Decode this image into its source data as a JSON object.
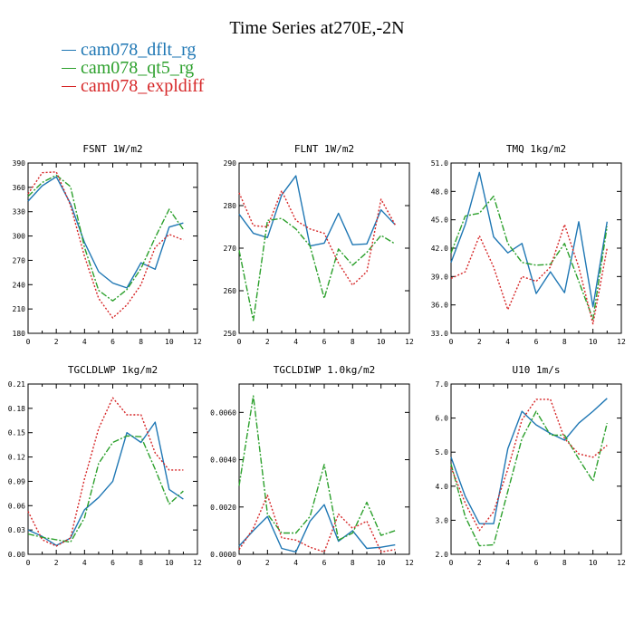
{
  "title": "Time Series at270E,-2N",
  "legend": [
    {
      "name": "cam078_dflt_rg",
      "color": "#1f77b4"
    },
    {
      "name": "cam078_qt5_rg",
      "color": "#2ca02c"
    },
    {
      "name": "cam078_expldiff",
      "color": "#d62728"
    }
  ],
  "chart_data": [
    {
      "type": "line",
      "title": "FSNT  1W/m2",
      "x": [
        0,
        1,
        2,
        3,
        4,
        5,
        6,
        7,
        8,
        9,
        10,
        11
      ],
      "xlim": [
        0,
        12
      ],
      "xticks": [
        0,
        2,
        4,
        6,
        8,
        10,
        12
      ],
      "ylim": [
        180,
        390
      ],
      "yticks": [
        "180",
        "210",
        "240",
        "270",
        "300",
        "330",
        "360",
        "390"
      ],
      "series": [
        {
          "name": "cam078_dflt_rg",
          "values": [
            343,
            362,
            373,
            340,
            292,
            256,
            242,
            236,
            267,
            259,
            311,
            316
          ]
        },
        {
          "name": "cam078_qt5_rg",
          "values": [
            349,
            366,
            375,
            361,
            286,
            233,
            220,
            234,
            260,
            298,
            333,
            308
          ]
        },
        {
          "name": "cam078_expldiff",
          "values": [
            352,
            378,
            379,
            338,
            275,
            223,
            199,
            215,
            240,
            286,
            302,
            295
          ]
        }
      ]
    },
    {
      "type": "line",
      "title": "FLNT  1W/m2",
      "x": [
        0,
        1,
        2,
        3,
        4,
        5,
        6,
        7,
        8,
        9,
        10,
        11
      ],
      "xlim": [
        0,
        12
      ],
      "xticks": [
        0,
        2,
        4,
        6,
        8,
        10,
        12
      ],
      "ylim": [
        250,
        290
      ],
      "yticks": [
        "250",
        "260",
        "270",
        "280",
        "290"
      ],
      "series": [
        {
          "name": "cam078_dflt_rg",
          "values": [
            278,
            273.5,
            272.5,
            282.5,
            287,
            270.5,
            271.2,
            278.2,
            270.8,
            271,
            279,
            275.5
          ]
        },
        {
          "name": "cam078_qt5_rg",
          "values": [
            269.5,
            253,
            276.5,
            277,
            274.5,
            270.5,
            258.2,
            269.8,
            266,
            269,
            273,
            271
          ]
        },
        {
          "name": "cam078_expldiff",
          "values": [
            283,
            275.3,
            275,
            283.5,
            276.5,
            274.5,
            273.5,
            266.5,
            261.3,
            264.5,
            281.5,
            275.5
          ]
        }
      ]
    },
    {
      "type": "line",
      "title": "TMQ  1kg/m2",
      "x": [
        0,
        1,
        2,
        3,
        4,
        5,
        6,
        7,
        8,
        9,
        10,
        11
      ],
      "xlim": [
        0,
        12
      ],
      "xticks": [
        0,
        2,
        4,
        6,
        8,
        10,
        12
      ],
      "ylim": [
        33.0,
        51.0
      ],
      "yticks": [
        "33.0",
        "36.0",
        "39.0",
        "42.0",
        "45.0",
        "48.0",
        "51.0"
      ],
      "series": [
        {
          "name": "cam078_dflt_rg",
          "values": [
            40.5,
            44.5,
            50.0,
            43.2,
            41.5,
            42.5,
            37.2,
            39.5,
            37.3,
            44.8,
            35.8,
            44.8
          ]
        },
        {
          "name": "cam078_qt5_rg",
          "values": [
            41.5,
            45.4,
            45.7,
            47.5,
            42.5,
            40.5,
            40.2,
            40.3,
            42.5,
            38.5,
            34.5,
            44.3
          ]
        },
        {
          "name": "cam078_expldiff",
          "values": [
            38.8,
            39.5,
            43.3,
            40.0,
            35.5,
            39.0,
            38.5,
            40.0,
            44.5,
            40.0,
            34.0,
            42.0
          ]
        }
      ]
    },
    {
      "type": "line",
      "title": "TGCLDLWP  1kg/m2",
      "x": [
        0,
        1,
        2,
        3,
        4,
        5,
        6,
        7,
        8,
        9,
        10,
        11
      ],
      "xlim": [
        0,
        12
      ],
      "xticks": [
        0,
        2,
        4,
        6,
        8,
        10,
        12
      ],
      "ylim": [
        0.0,
        0.21
      ],
      "yticks": [
        "0.00",
        "0.03",
        "0.06",
        "0.09",
        "0.12",
        "0.15",
        "0.18",
        "0.21"
      ],
      "series": [
        {
          "name": "cam078_dflt_rg",
          "values": [
            0.03,
            0.022,
            0.011,
            0.02,
            0.055,
            0.07,
            0.09,
            0.15,
            0.138,
            0.163,
            0.08,
            0.068
          ]
        },
        {
          "name": "cam078_qt5_rg",
          "values": [
            0.025,
            0.021,
            0.018,
            0.015,
            0.045,
            0.112,
            0.138,
            0.146,
            0.145,
            0.105,
            0.062,
            0.078
          ]
        },
        {
          "name": "cam078_expldiff",
          "values": [
            0.053,
            0.018,
            0.01,
            0.02,
            0.093,
            0.155,
            0.193,
            0.172,
            0.172,
            0.125,
            0.104,
            0.104
          ]
        }
      ]
    },
    {
      "type": "line",
      "title": "TGCLDIWP  1.0kg/m2",
      "x": [
        0,
        1,
        2,
        3,
        4,
        5,
        6,
        7,
        8,
        9,
        10,
        11
      ],
      "xlim": [
        0,
        12
      ],
      "xticks": [
        0,
        2,
        4,
        6,
        8,
        10,
        12
      ],
      "ylim": [
        0,
        0.0072
      ],
      "yticks": [
        "0.0000",
        "0.0020",
        "0.0040",
        "0.0060"
      ],
      "series": [
        {
          "name": "cam078_dflt_rg",
          "values": [
            0.00035,
            0.001,
            0.0016,
            0.00025,
            0.0001,
            0.0014,
            0.0021,
            0.00055,
            0.001,
            0.00025,
            0.0003,
            0.0004
          ]
        },
        {
          "name": "cam078_qt5_rg",
          "values": [
            0.0029,
            0.0067,
            0.0017,
            0.0009,
            0.0009,
            0.0016,
            0.0038,
            0.0006,
            0.0009,
            0.0022,
            0.0008,
            0.001
          ]
        },
        {
          "name": "cam078_expldiff",
          "values": [
            0.0002,
            0.0011,
            0.0025,
            0.0007,
            0.0006,
            0.0003,
            0.0001,
            0.0017,
            0.0011,
            0.0014,
            0.0001,
            0.0002
          ]
        }
      ]
    },
    {
      "type": "line",
      "title": "U10  1m/s",
      "x": [
        0,
        1,
        2,
        3,
        4,
        5,
        6,
        7,
        8,
        9,
        10,
        11
      ],
      "xlim": [
        0,
        12
      ],
      "xticks": [
        0,
        2,
        4,
        6,
        8,
        10,
        12
      ],
      "ylim": [
        2.0,
        7.0
      ],
      "yticks": [
        "2.0",
        "3.0",
        "4.0",
        "5.0",
        "6.0",
        "7.0"
      ],
      "series": [
        {
          "name": "cam078_dflt_rg",
          "values": [
            4.85,
            3.7,
            2.9,
            2.9,
            5.1,
            6.2,
            5.8,
            5.55,
            5.35,
            5.85,
            6.2,
            6.58
          ]
        },
        {
          "name": "cam078_qt5_rg",
          "values": [
            4.65,
            3.1,
            2.25,
            2.28,
            3.85,
            5.4,
            6.2,
            5.5,
            5.5,
            4.8,
            4.15,
            5.85
          ]
        },
        {
          "name": "cam078_expldiff",
          "values": [
            4.55,
            3.5,
            2.7,
            3.25,
            4.5,
            5.95,
            6.55,
            6.55,
            5.4,
            4.95,
            4.85,
            5.2
          ]
        }
      ]
    }
  ]
}
